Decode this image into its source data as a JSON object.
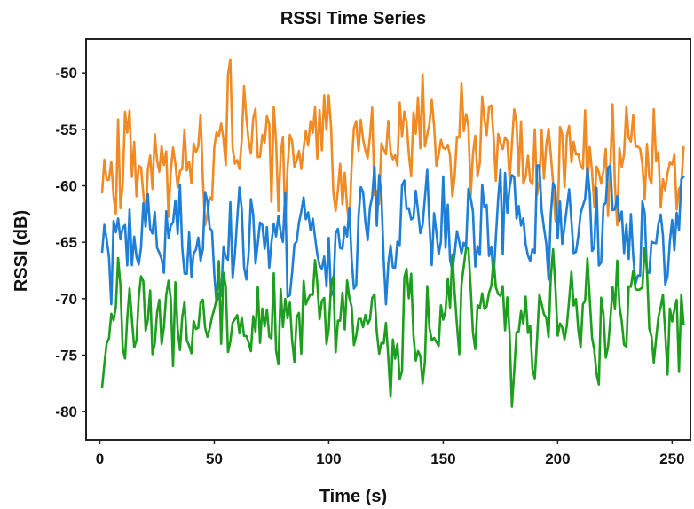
{
  "chart_data": {
    "type": "line",
    "title": "RSSI  Time Series",
    "xlabel": "Time (s)",
    "ylabel": "RSSI  (dB)",
    "xlim": [
      -6,
      258
    ],
    "ylim": [
      -82.5,
      -47
    ],
    "x_ticks": [
      0,
      50,
      100,
      150,
      200,
      250
    ],
    "x_tick_labels": [
      "0",
      "50",
      "100",
      "150",
      "200",
      "250"
    ],
    "y_ticks": [
      -50,
      -55,
      -60,
      -65,
      -70,
      -75,
      -80
    ],
    "y_tick_labels": [
      "-50",
      "-55",
      "-60",
      "-65",
      "-70",
      "-75",
      "-80"
    ],
    "grid": false,
    "legend": "none",
    "x_start": 1,
    "x_end": 255,
    "x_step": 1,
    "series": [
      {
        "color": "#f08a24",
        "mean": -57.3,
        "spread": 2.6,
        "min": -63.5,
        "max": -48.8,
        "seed": 11
      },
      {
        "color": "#1f7fd6",
        "mean": -64.3,
        "spread": 2.4,
        "min": -70.5,
        "max": -58.2,
        "seed": 23
      },
      {
        "color": "#1e9e1e",
        "mean": -72.0,
        "spread": 2.3,
        "min": -80.5,
        "max": -65.5,
        "seed": 37
      }
    ]
  }
}
